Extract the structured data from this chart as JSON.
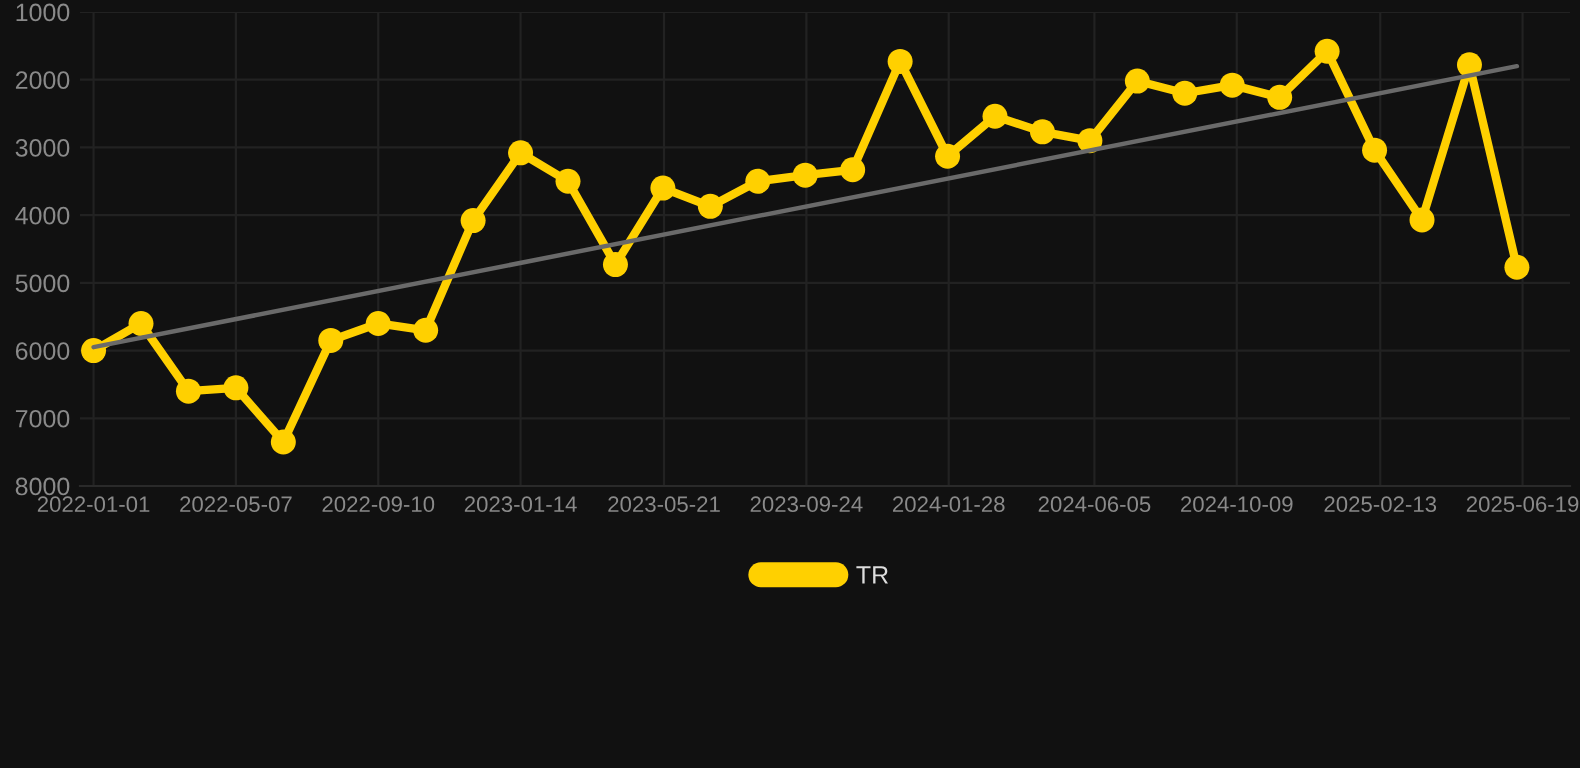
{
  "chart_data": {
    "type": "line",
    "x": [
      "2022-01-01",
      "2022-02-12",
      "2022-03-26",
      "2022-05-07",
      "2022-06-18",
      "2022-07-30",
      "2022-09-10",
      "2022-10-22",
      "2022-12-03",
      "2023-01-14",
      "2023-02-25",
      "2023-04-08",
      "2023-05-20",
      "2023-07-01",
      "2023-08-12",
      "2023-09-23",
      "2023-11-04",
      "2023-12-16",
      "2024-01-27",
      "2024-03-09",
      "2024-04-20",
      "2024-06-01",
      "2024-07-13",
      "2024-08-24",
      "2024-10-05",
      "2024-11-16",
      "2024-12-28",
      "2025-02-08",
      "2025-03-22",
      "2025-05-03",
      "2025-06-14"
    ],
    "series": [
      {
        "name": "TR",
        "color": "#ffd000",
        "marker": "circle",
        "values": [
          6000,
          5600,
          6600,
          6550,
          7350,
          5850,
          5600,
          5700,
          4080,
          3080,
          3500,
          4730,
          3600,
          3870,
          3500,
          3410,
          3330,
          1730,
          3130,
          2540,
          2770,
          2900,
          2020,
          2200,
          2080,
          2260,
          1580,
          3040,
          4070,
          1780,
          4770
        ]
      },
      {
        "type": "line",
        "color": "#6a6a6a",
        "marker": "none",
        "x": [
          "2022-01-01",
          "2025-06-14"
        ],
        "values": [
          5950,
          1800
        ]
      }
    ],
    "xlim": [
      "2021-12-20",
      "2025-07-31"
    ],
    "xticks": [
      {
        "value": "2022-01-01",
        "label": "2022-01-01"
      },
      {
        "value": "2022-05-07",
        "label": "2022-05-07"
      },
      {
        "value": "2022-09-10",
        "label": "2022-09-10"
      },
      {
        "value": "2023-01-14",
        "label": "2023-01-14"
      },
      {
        "value": "2023-05-21",
        "label": "2023-05-21"
      },
      {
        "value": "2023-09-24",
        "label": "2023-09-24"
      },
      {
        "value": "2024-01-28",
        "label": "2024-01-28"
      },
      {
        "value": "2024-06-05",
        "label": "2024-06-05"
      },
      {
        "value": "2024-10-09",
        "label": "2024-10-09"
      },
      {
        "value": "2025-02-13",
        "label": "2025-02-13"
      },
      {
        "value": "2025-06-19",
        "label": "2025-06-19"
      }
    ],
    "ylim": [
      8000,
      1000
    ],
    "yticks": [
      1000,
      2000,
      3000,
      4000,
      5000,
      6000,
      7000,
      8000
    ],
    "grid": true,
    "legend": "bottom",
    "line_style": "solid"
  }
}
